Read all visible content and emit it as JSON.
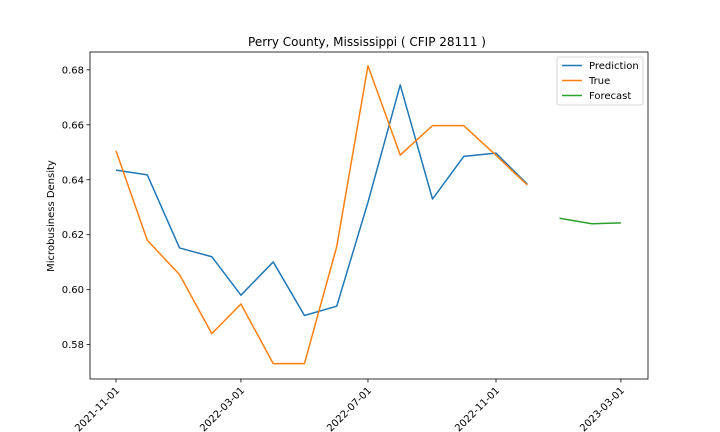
{
  "chart_data": {
    "type": "line",
    "title": "Perry County, Mississippi ( CFIP 28111 )",
    "xlabel": "",
    "ylabel": "Microbusiness Density",
    "x_ticks": [
      "2021-11-01",
      "2022-03-01",
      "2022-07-01",
      "2022-11-01",
      "2023-03-01"
    ],
    "y_ticks": [
      "0.58",
      "0.60",
      "0.62",
      "0.64",
      "0.66",
      "0.68"
    ],
    "x_range": [
      "2021-10-07",
      "2023-03-27"
    ],
    "ylim": [
      0.5675,
      0.6865
    ],
    "grid": false,
    "legend": "top-right",
    "series": [
      {
        "name": "Prediction",
        "color": "#1f77b4",
        "x": [
          "2021-11-01",
          "2021-12-01",
          "2022-01-01",
          "2022-02-01",
          "2022-03-01",
          "2022-04-01",
          "2022-05-01",
          "2022-06-01",
          "2022-07-01",
          "2022-08-01",
          "2022-09-01",
          "2022-10-01",
          "2022-11-01",
          "2022-12-01"
        ],
        "values": [
          0.6435,
          0.6418,
          0.6152,
          0.612,
          0.598,
          0.6101,
          0.5906,
          0.594,
          0.6318,
          0.6745,
          0.633,
          0.6485,
          0.6497,
          0.6384
        ]
      },
      {
        "name": "True",
        "color": "#ff7f0e",
        "x": [
          "2021-11-01",
          "2021-12-01",
          "2022-01-01",
          "2022-02-01",
          "2022-03-01",
          "2022-04-01",
          "2022-05-01",
          "2022-06-01",
          "2022-07-01",
          "2022-08-01",
          "2022-09-01",
          "2022-10-01",
          "2022-11-01",
          "2022-12-01"
        ],
        "values": [
          0.6505,
          0.618,
          0.6055,
          0.584,
          0.5948,
          0.5731,
          0.5731,
          0.6157,
          0.6815,
          0.649,
          0.6597,
          0.6597,
          0.6489,
          0.6381
        ]
      },
      {
        "name": "Forecast",
        "color": "#2ca02c",
        "x": [
          "2023-01-01",
          "2023-02-01",
          "2023-03-01"
        ],
        "values": [
          0.626,
          0.624,
          0.6243
        ]
      }
    ]
  }
}
